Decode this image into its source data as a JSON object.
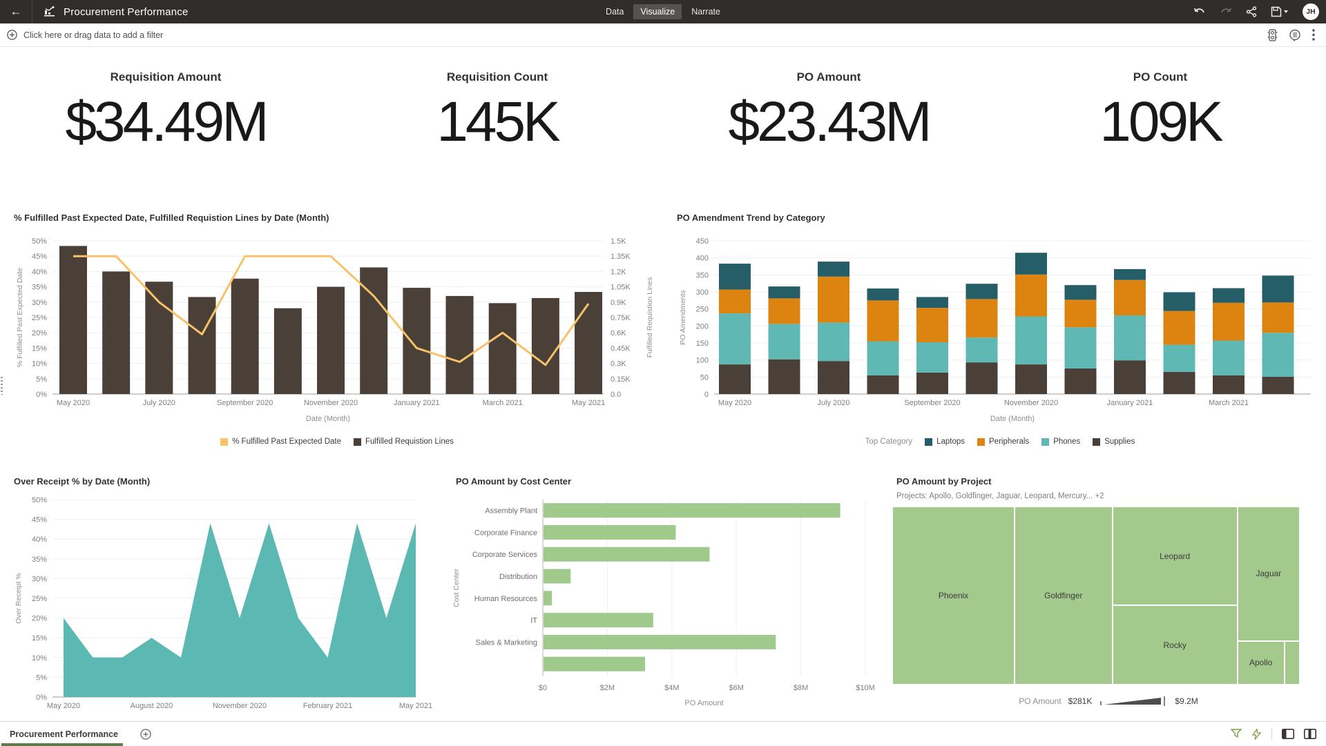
{
  "topbar": {
    "title": "Procurement Performance",
    "tabs": [
      {
        "label": "Data",
        "active": false
      },
      {
        "label": "Visualize",
        "active": true
      },
      {
        "label": "Narrate",
        "active": false
      }
    ],
    "avatar": "JH",
    "colors": {
      "bar": "#312d2a",
      "active_tab": "#57524e"
    }
  },
  "filter_bar": {
    "prompt": "Click here or drag data to add a filter"
  },
  "kpis": [
    {
      "title": "Requisition Amount",
      "value": "$34.49M"
    },
    {
      "title": "Requisition Count",
      "value": "145K"
    },
    {
      "title": "PO Amount",
      "value": "$23.43M"
    },
    {
      "title": "PO Count",
      "value": "109K"
    }
  ],
  "chart_data": [
    {
      "id": "fulfilled",
      "type": "combo-bar-line",
      "title": "% Fulfilled Past Expected Date, Fulfilled Requistion Lines by Date (Month)",
      "xlabel": "Date (Month)",
      "x": [
        "May 2020",
        "June 2020",
        "July 2020",
        "August 2020",
        "September 2020",
        "October 2020",
        "November 2020",
        "December 2020",
        "January 2021",
        "February 2021",
        "March 2021",
        "April 2021",
        "May 2021"
      ],
      "left_axis": {
        "label": "% Fulfilled Past Expected Date",
        "min": 0,
        "max": 50,
        "tick_step": 5,
        "tick_suffix": "%"
      },
      "right_axis": {
        "label": "Fulfilled Requistion Lines",
        "min": 0,
        "max": 1.5,
        "ticks": [
          "0.0",
          "0.15K",
          "0.3K",
          "0.45K",
          "0.6K",
          "0.75K",
          "0.9K",
          "1.05K",
          "1.2K",
          "1.35K",
          "1.5K"
        ]
      },
      "series": [
        {
          "name": "% Fulfilled Past Expected Date",
          "kind": "line",
          "axis": "left",
          "color": "#f8c269",
          "values": [
            45,
            45,
            30,
            19.5,
            45,
            45,
            45,
            32,
            15,
            10.5,
            20,
            9.5,
            29.5
          ]
        },
        {
          "name": "Fulfilled Requistion Lines",
          "kind": "bar",
          "axis": "right",
          "color": "#4a4038",
          "values": [
            1.45,
            1.2,
            1.1,
            0.95,
            1.13,
            0.84,
            1.05,
            1.24,
            1.04,
            0.96,
            0.89,
            0.94,
            1.0
          ]
        }
      ],
      "grid": true
    },
    {
      "id": "amendment",
      "type": "stacked-bar",
      "title": "PO Amendment Trend by Category",
      "xlabel": "Date (Month)",
      "ylabel": "PO Amendments",
      "ylim": [
        0,
        450
      ],
      "ytick_step": 50,
      "x": [
        "May 2020",
        "June 2020",
        "July 2020",
        "August 2020",
        "September 2020",
        "October 2020",
        "November 2020",
        "December 2020",
        "January 2021",
        "February 2021",
        "March 2021",
        "April 2021"
      ],
      "legend_title": "Top Category",
      "series": [
        {
          "name": "Laptops",
          "color": "#265e67",
          "values": [
            76,
            35,
            44,
            35,
            32,
            45,
            64,
            43,
            32,
            55,
            43,
            79
          ]
        },
        {
          "name": "Peripherals",
          "color": "#dd830f",
          "values": [
            70,
            75,
            135,
            120,
            101,
            113,
            123,
            81,
            104,
            99,
            111,
            89
          ]
        },
        {
          "name": "Phones",
          "color": "#5fb8b4",
          "values": [
            150,
            104,
            113,
            100,
            89,
            73,
            141,
            121,
            132,
            80,
            102,
            129
          ]
        },
        {
          "name": "Supplies",
          "color": "#4a4038",
          "values": [
            87,
            102,
            97,
            55,
            63,
            93,
            87,
            75,
            99,
            65,
            55,
            51
          ]
        }
      ],
      "stack_order": [
        "Supplies",
        "Phones",
        "Peripherals",
        "Laptops"
      ],
      "grid": true
    },
    {
      "id": "overreceipt",
      "type": "area",
      "title": "Over Receipt % by Date (Month)",
      "ylabel": "Over Receipt %",
      "ylim": [
        0,
        50
      ],
      "ytick_step": 5,
      "tick_suffix": "%",
      "color": "#5cb8b2",
      "x": [
        "May 2020",
        "June 2020",
        "July 2020",
        "August 2020",
        "September 2020",
        "October 2020",
        "November 2020",
        "December 2020",
        "January 2021",
        "February 2021",
        "March 2021",
        "April 2021",
        "May 2021"
      ],
      "values": [
        20,
        10,
        10,
        15,
        10,
        44,
        20,
        44,
        20,
        10,
        44,
        20,
        44
      ],
      "grid": true
    },
    {
      "id": "costcenter",
      "type": "hbar",
      "title": "PO Amount by Cost Center",
      "xlabel": "PO Amount",
      "ylabel": "Cost Center",
      "xlim": [
        0,
        10
      ],
      "xticks": [
        "$0",
        "$2M",
        "$4M",
        "$6M",
        "$8M",
        "$10M"
      ],
      "color": "#a0ca8b",
      "categories": [
        "Assembly Plant",
        "Corporate Finance",
        "Corporate Services",
        "Distribution",
        "Human Resources",
        "IT",
        "Sales & Marketing",
        ""
      ],
      "values": [
        9.2,
        4.1,
        5.15,
        0.84,
        0.26,
        3.4,
        7.2,
        3.15
      ],
      "grid": true
    },
    {
      "id": "project",
      "type": "treemap",
      "title": "PO Amount by Project",
      "subtitle": "Projects: Apollo, Goldfinger, Jaguar, Leopard, Mercury... +2",
      "color": "#a3ca8c",
      "legend": {
        "label": "PO Amount",
        "min": "$281K",
        "max": "$9.2M"
      },
      "tiles": [
        {
          "name": "Phoenix",
          "x": 0,
          "y": 0,
          "w": 0.3,
          "h": 1
        },
        {
          "name": "Goldfinger",
          "x": 0.3,
          "y": 0,
          "w": 0.24,
          "h": 1
        },
        {
          "name": "Leopard",
          "x": 0.54,
          "y": 0,
          "w": 0.307,
          "h": 0.555
        },
        {
          "name": "Rocky",
          "x": 0.54,
          "y": 0.555,
          "w": 0.307,
          "h": 0.445
        },
        {
          "name": "Jaguar",
          "x": 0.847,
          "y": 0,
          "w": 0.153,
          "h": 0.755
        },
        {
          "name": "Apollo",
          "x": 0.847,
          "y": 0.755,
          "w": 0.115,
          "h": 0.245
        },
        {
          "name": "",
          "x": 0.962,
          "y": 0.755,
          "w": 0.038,
          "h": 0.245
        }
      ]
    }
  ],
  "bottombar": {
    "canvas_tab": "Procurement Performance"
  }
}
